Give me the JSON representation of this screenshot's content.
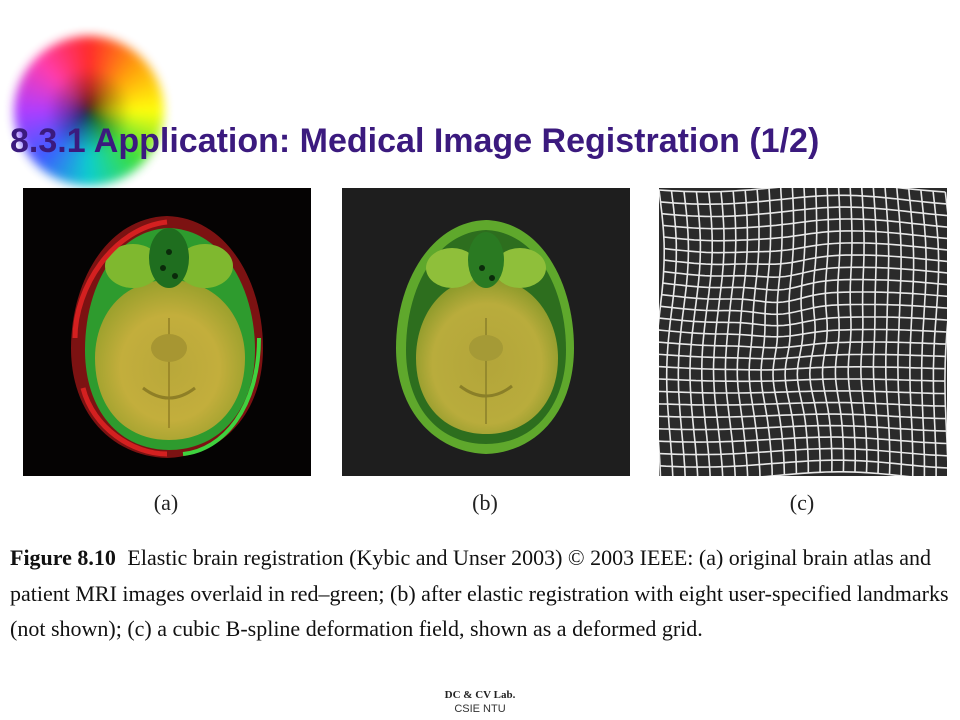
{
  "slide": {
    "title": "8.3.1 Application: Medical Image Registration (1/2)"
  },
  "figure": {
    "panels": [
      {
        "label": "(a)",
        "mode": "overlay-red-green"
      },
      {
        "label": "(b)",
        "mode": "overlay-aligned"
      },
      {
        "label": "(c)",
        "mode": "deformed-grid"
      }
    ],
    "caption_number": "Figure 8.10",
    "caption_text": "Elastic brain registration (Kybic and Unser 2003) © 2003 IEEE: (a) original brain atlas and patient MRI images overlaid in red–green; (b) after elastic registration with eight user-specified landmarks (not shown); (c) a cubic B-spline deformation field, shown as a deformed grid."
  },
  "footer": {
    "lab": "DC & CV Lab.",
    "institution": "CSIE NTU"
  },
  "colors": {
    "title": "#3b1a7e",
    "overlay_red": "#c81e1e",
    "overlay_green": "#3ec43a",
    "brain_yellow": "#c9b640"
  }
}
